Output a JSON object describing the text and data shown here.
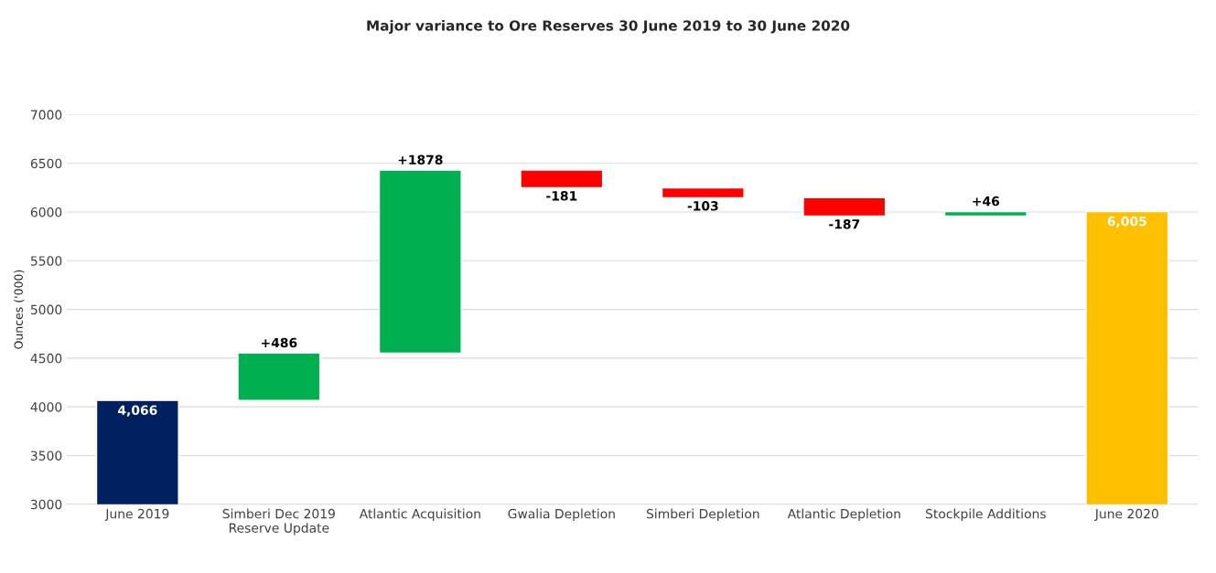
{
  "chart_data": {
    "type": "bar",
    "title": "Major variance to Ore Reserves 30 June 2019 to 30 June 2020",
    "ylabel": "Ounces ('000)",
    "categories": [
      "June 2019",
      "Simberi Dec 2019\nReserve Update",
      "Atlantic Acquisition",
      "Gwalia Depletion",
      "Simberi Depletion",
      "Atlantic Depletion",
      "Stockpile Additions",
      "June 2020"
    ],
    "values": [
      4066,
      486,
      1878,
      -181,
      -103,
      -187,
      46,
      6005
    ],
    "base": [
      0,
      4066,
      4552,
      6430,
      6249,
      6146,
      5959,
      0
    ],
    "colors": [
      "#002060",
      "#00b050",
      "#00b050",
      "#ff0000",
      "#ff0000",
      "#ff0000",
      "#00b050",
      "#ffc000"
    ],
    "value_labels": [
      "4,066",
      "+486",
      "+1878",
      "-181",
      "-103",
      "-187",
      "+46",
      "6,005"
    ],
    "ylim": [
      3000,
      7000
    ],
    "yticks": [
      3000,
      3500,
      4000,
      4500,
      5000,
      5500,
      6000,
      6500,
      7000
    ],
    "grid": "y"
  }
}
